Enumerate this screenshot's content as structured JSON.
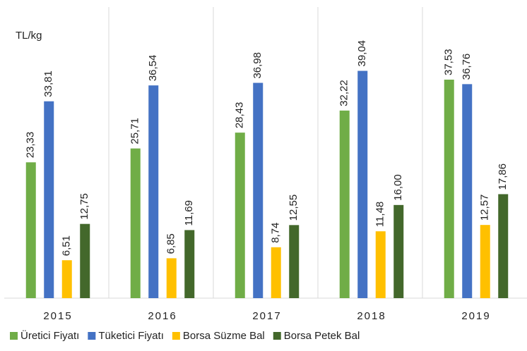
{
  "chart_data": {
    "type": "bar",
    "y_label": "TL/kg",
    "categories": [
      "2015",
      "2016",
      "2017",
      "2018",
      "2019"
    ],
    "series": [
      {
        "name": "Üretici Fiyatı",
        "color": "#70ad47",
        "values": [
          23.33,
          25.71,
          28.43,
          32.22,
          37.53
        ],
        "value_labels": [
          "23,33",
          "25,71",
          "28,43",
          "32,22",
          "37,53"
        ]
      },
      {
        "name": "Tüketici Fiyatı",
        "color": "#4472c4",
        "values": [
          33.81,
          36.54,
          36.98,
          39.04,
          36.76
        ],
        "value_labels": [
          "33,81",
          "36,54",
          "36,98",
          "39,04",
          "36,76"
        ]
      },
      {
        "name": "Borsa Süzme Bal",
        "color": "#ffc000",
        "values": [
          6.51,
          6.85,
          8.74,
          11.48,
          12.57
        ],
        "value_labels": [
          "6,51",
          "6,85",
          "8,74",
          "11,48",
          "12,57"
        ]
      },
      {
        "name": "Borsa Petek Bal",
        "color": "#43682b",
        "values": [
          12.75,
          11.69,
          12.55,
          16.0,
          17.86
        ],
        "value_labels": [
          "12,75",
          "11,69",
          "12,55",
          "16,00",
          "17,86"
        ]
      }
    ],
    "ylim": [
      0,
      50
    ],
    "legend": "bottom"
  }
}
